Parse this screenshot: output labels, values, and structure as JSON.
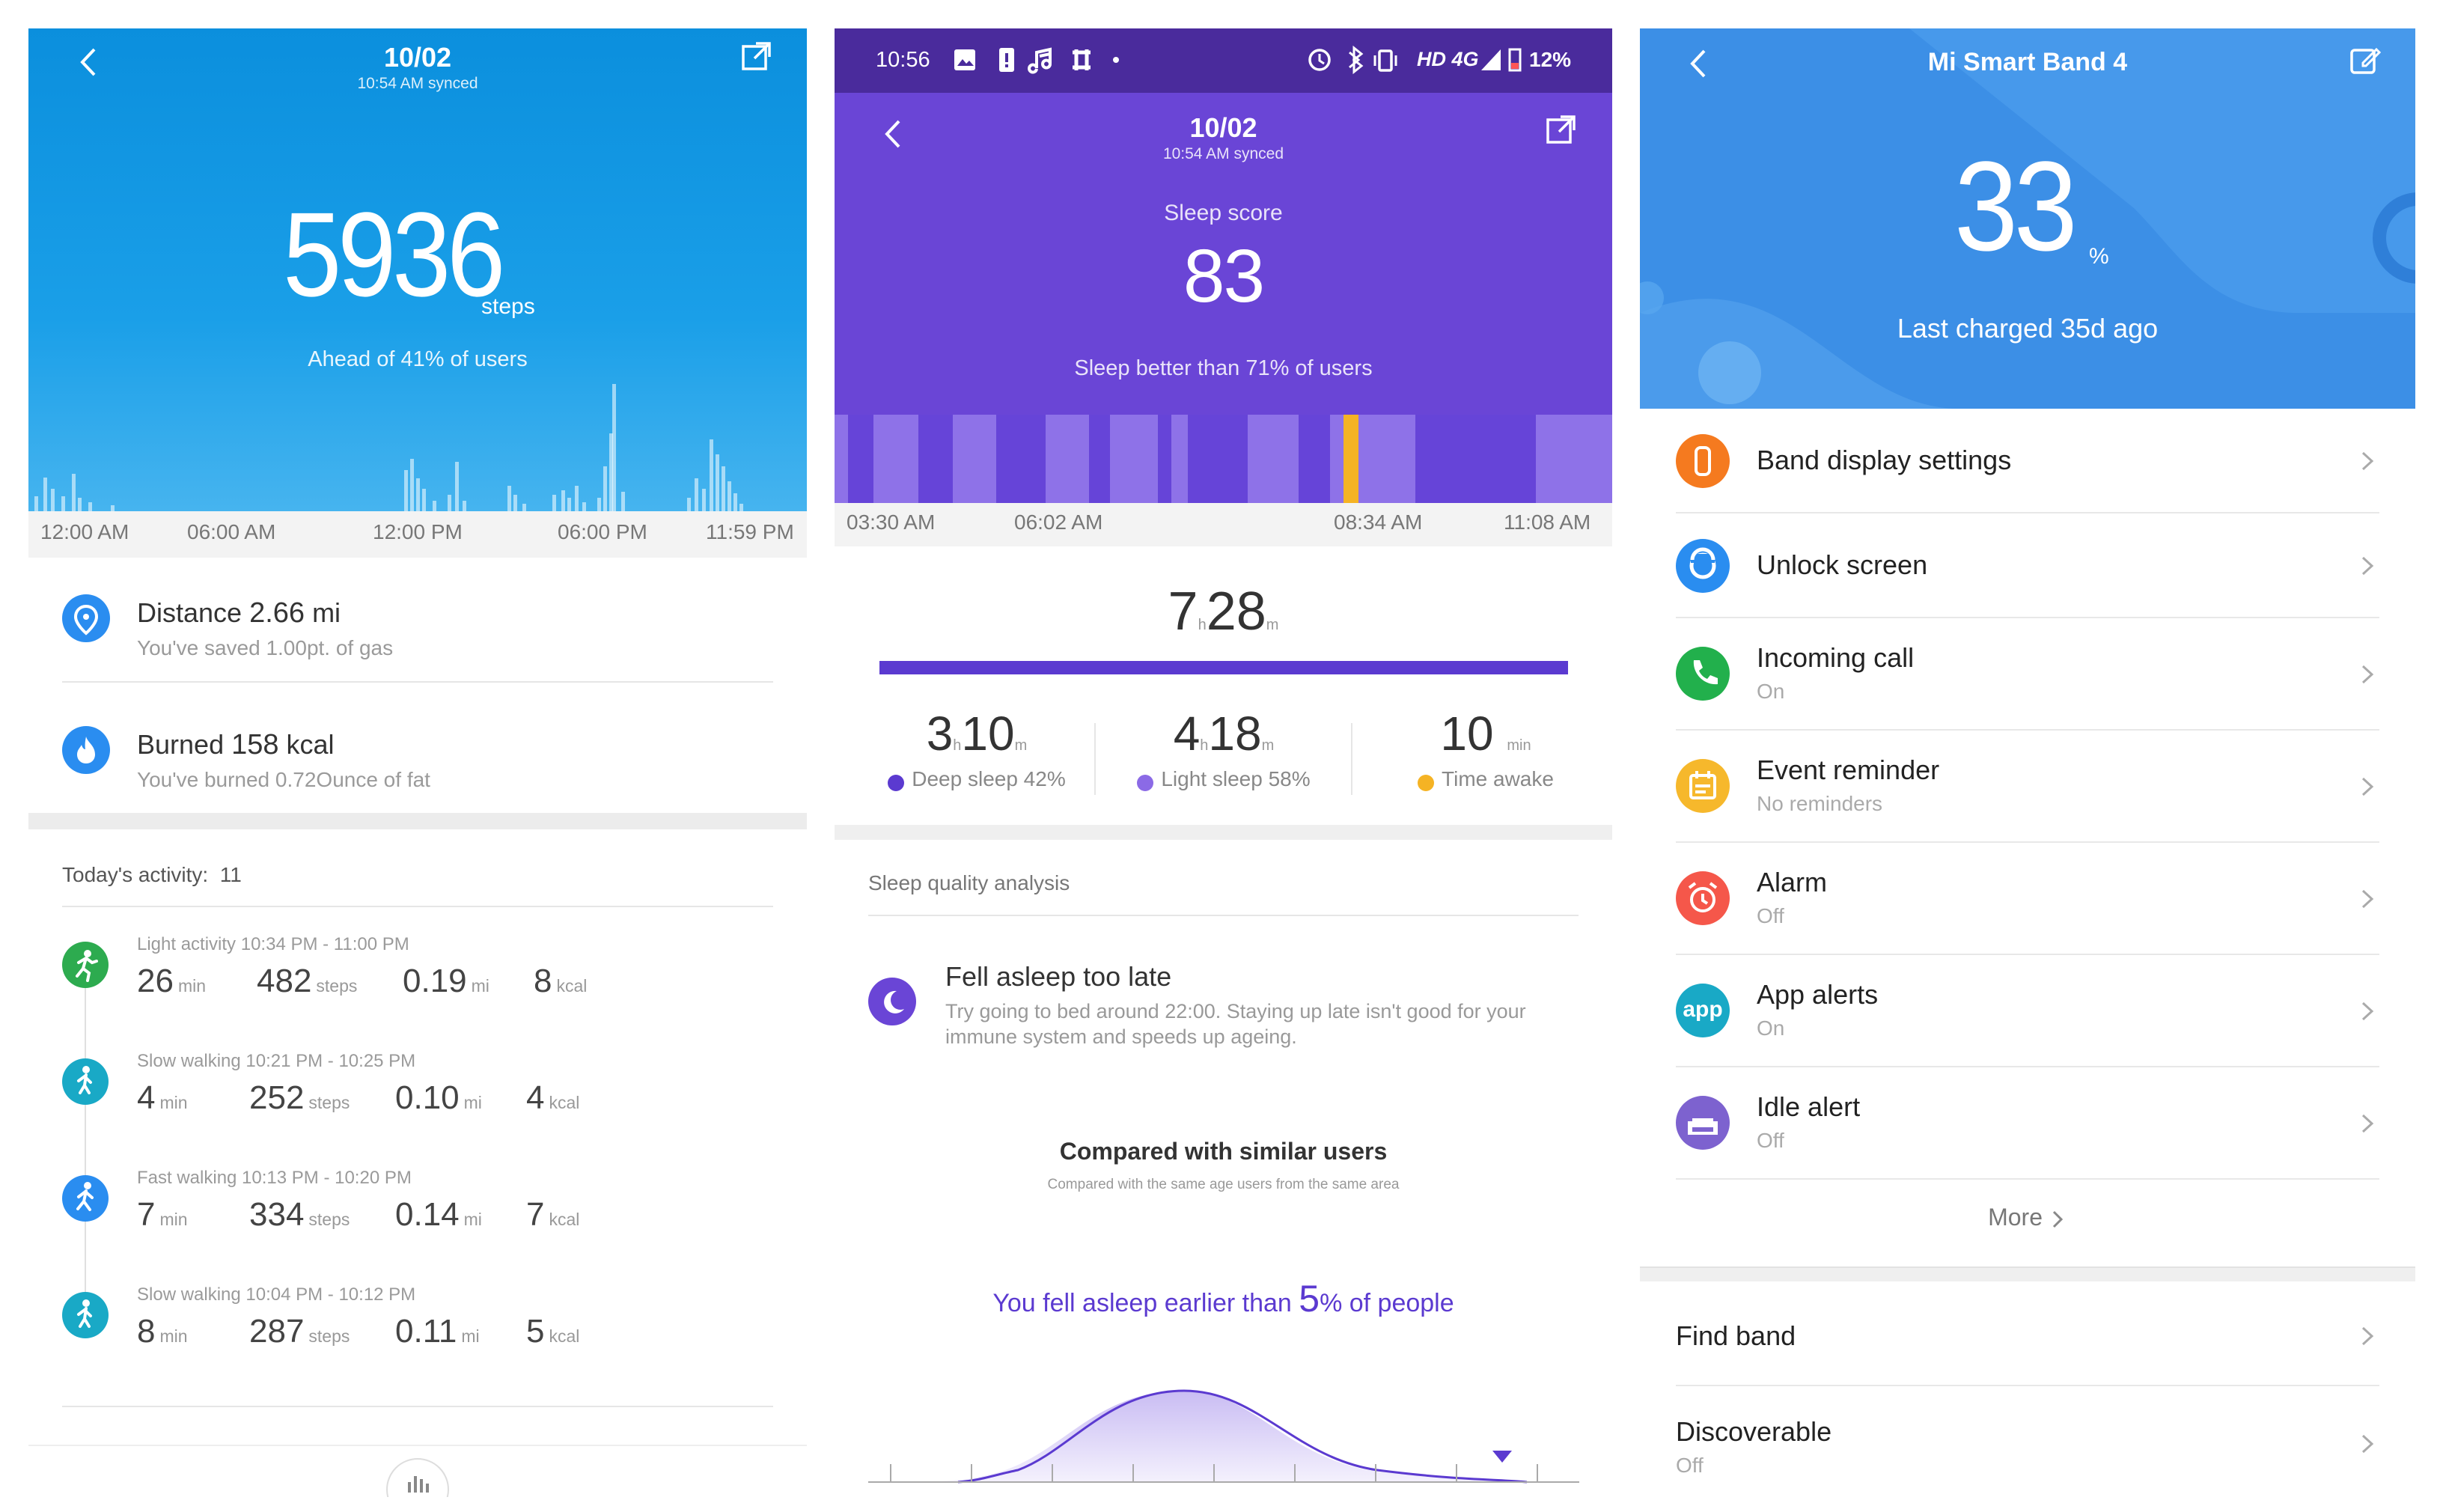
{
  "screen1": {
    "date": "10/02",
    "synced": "10:54 AM synced",
    "steps": "5936",
    "steps_unit": "steps",
    "rank": "Ahead of 41% of users",
    "time_axis": [
      "12:00 AM",
      "06:00 AM",
      "12:00 PM",
      "06:00 PM",
      "11:59 PM"
    ],
    "distance_label": "Distance",
    "distance_value": "2.66",
    "distance_unit": "mi",
    "distance_sub": "You've saved 1.00pt. of gas",
    "burned_label": "Burned",
    "burned_value": "158",
    "burned_unit": "kcal",
    "burned_sub": "You've burned 0.72Ounce of fat",
    "activity_header": "Today's activity:",
    "activity_count": "11",
    "activities": [
      {
        "title": "Light activity 10:34 PM - 11:00 PM",
        "min": "26",
        "steps": "482",
        "mi": "0.19",
        "kcal": "8",
        "icon": "running-person-icon",
        "color": "#2dab4f"
      },
      {
        "title": "Slow walking 10:21 PM - 10:25 PM",
        "min": "4",
        "steps": "252",
        "mi": "0.10",
        "kcal": "4",
        "icon": "walking-person-icon",
        "color": "#19a9c6"
      },
      {
        "title": "Fast walking 10:13 PM - 10:20 PM",
        "min": "7",
        "steps": "334",
        "mi": "0.14",
        "kcal": "7",
        "icon": "fast-walking-person-icon",
        "color": "#2a8df0"
      },
      {
        "title": "Slow walking 10:04 PM - 10:12 PM",
        "min": "8",
        "steps": "287",
        "mi": "0.11",
        "kcal": "5",
        "icon": "walking-person-icon",
        "color": "#19a9c6"
      }
    ],
    "units": {
      "min": "min",
      "steps": "steps",
      "mi": "mi",
      "kcal": "kcal"
    }
  },
  "screen2": {
    "status_time": "10:56",
    "status_net": "HD 4G",
    "battery": "12%",
    "date": "10/02",
    "synced": "10:54 AM synced",
    "score_label": "Sleep score",
    "score": "83",
    "score_rank": "Sleep better than 71% of users",
    "time_axis": [
      "03:30 AM",
      "06:02 AM",
      "08:34 AM",
      "11:08 AM"
    ],
    "total_h": "7",
    "total_m": "28",
    "h": "h",
    "m": "m",
    "deep_h": "3",
    "deep_m": "10",
    "deep_label": "Deep sleep 42%",
    "light_h": "4",
    "light_m": "18",
    "light_label": "Light sleep 58%",
    "awake_min": "10",
    "awake_unit": "min",
    "awake_label": "Time awake",
    "analysis_header": "Sleep quality analysis",
    "analysis_title": "Fell asleep too late",
    "analysis_text_1": "Try going to bed around 22:00. Staying up late isn't good for your",
    "analysis_text_2": "immune system and speeds up ageing.",
    "compare_title": "Compared with similar users",
    "compare_sub": "Compared with the same age users from the same area",
    "compare_pre": "You fell asleep earlier than",
    "compare_pct": "5",
    "compare_post": "% of people",
    "colors": {
      "deep": "#5b3ad0",
      "light": "#8b6ae6",
      "awake": "#f5b324"
    }
  },
  "screen3": {
    "title": "Mi Smart Band 4",
    "battery": "33",
    "pct": "%",
    "charged": "Last charged 35d ago",
    "items": [
      {
        "title": "Band display settings",
        "sub": "",
        "icon": "band-icon",
        "color": "#f57a1f"
      },
      {
        "title": "Unlock screen",
        "sub": "",
        "icon": "unlock-icon",
        "color": "#2a8df0"
      },
      {
        "title": "Incoming call",
        "sub": "On",
        "icon": "phone-icon",
        "color": "#22b04c"
      },
      {
        "title": "Event reminder",
        "sub": "No reminders",
        "icon": "calendar-icon",
        "color": "#f6b82c"
      },
      {
        "title": "Alarm",
        "sub": "Off",
        "icon": "alarm-clock-icon",
        "color": "#f5574a"
      },
      {
        "title": "App alerts",
        "sub": "On",
        "icon": "app-icon",
        "color": "#19a9c6"
      },
      {
        "title": "Idle alert",
        "sub": "Off",
        "icon": "sofa-icon",
        "color": "#7d62cf"
      }
    ],
    "more": "More",
    "find_band": "Find band",
    "discoverable": "Discoverable",
    "discoverable_sub": "Off",
    "app_icon_text": "app"
  }
}
